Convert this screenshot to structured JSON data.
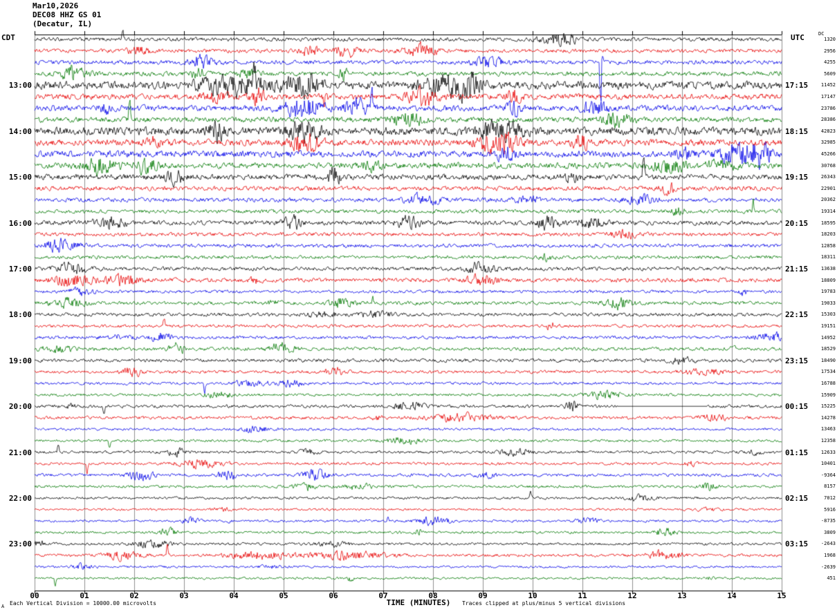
{
  "title": {
    "line1": "Mar10,2026",
    "line2": "DEC08 HHZ GS 01",
    "line3": "(Decatur, IL)"
  },
  "timezones": {
    "left": "CDT",
    "right": "UTC",
    "right_scale": "DC"
  },
  "footer": {
    "left": "Each Vertical Division = 10000.00 microvolts",
    "right": "Traces clipped at plus/minus 5 vertical divisions",
    "corner": "A"
  },
  "chart_data": {
    "type": "line",
    "subtype": "helicorder seismogram, 48 trace lines of 15 minutes each, colors cycling black/red/blue/green",
    "xlabel": "TIME (MINUTES)",
    "x_ticks": [
      "00",
      "01",
      "02",
      "03",
      "04",
      "05",
      "06",
      "07",
      "08",
      "09",
      "10",
      "11",
      "12",
      "13",
      "14",
      "15"
    ],
    "x_range_minutes": [
      0,
      15
    ],
    "minutes_per_line": 15,
    "grid": true,
    "grid_color": "#8f8f8f",
    "trace_colors": {
      "black": "#000000",
      "red": "#e80000",
      "blue": "#0000e8",
      "green": "#007700"
    },
    "left_time_labels": [
      {
        "row": 4,
        "text": "13:00"
      },
      {
        "row": 8,
        "text": "14:00"
      },
      {
        "row": 12,
        "text": "15:00"
      },
      {
        "row": 16,
        "text": "16:00"
      },
      {
        "row": 20,
        "text": "17:00"
      },
      {
        "row": 24,
        "text": "18:00"
      },
      {
        "row": 28,
        "text": "19:00"
      },
      {
        "row": 32,
        "text": "20:00"
      },
      {
        "row": 36,
        "text": "21:00"
      },
      {
        "row": 40,
        "text": "22:00"
      },
      {
        "row": 44,
        "text": "23:00"
      }
    ],
    "right_time_labels": [
      {
        "row": 4,
        "text": "17:15"
      },
      {
        "row": 8,
        "text": "18:15"
      },
      {
        "row": 12,
        "text": "19:15"
      },
      {
        "row": 16,
        "text": "20:15"
      },
      {
        "row": 20,
        "text": "21:15"
      },
      {
        "row": 24,
        "text": "22:15"
      },
      {
        "row": 28,
        "text": "23:15"
      },
      {
        "row": 32,
        "text": "00:15"
      },
      {
        "row": 36,
        "text": "01:15"
      },
      {
        "row": 40,
        "text": "02:15"
      },
      {
        "row": 44,
        "text": "03:15"
      }
    ],
    "rows": [
      {
        "value": "1320",
        "color": "black",
        "amp": 2.2
      },
      {
        "value": "2956",
        "color": "red",
        "amp": 2.2,
        "events": [
          {
            "p": 0.515,
            "w": 0.02,
            "m": 3.5
          }
        ]
      },
      {
        "value": "4255",
        "color": "blue",
        "amp": 2.4,
        "events": [
          {
            "p": 0.225,
            "w": 0.015,
            "m": 3
          },
          {
            "p": 0.758,
            "w": 0.0015,
            "m": 40
          }
        ]
      },
      {
        "value": "5609",
        "color": "green",
        "amp": 2.6,
        "events": [
          {
            "p": 0.05,
            "w": 0.02,
            "m": 2.5
          },
          {
            "p": 0.22,
            "w": 0.01,
            "m": 2
          }
        ]
      },
      {
        "value": "11452",
        "color": "black",
        "amp": 4.5,
        "events": [
          {
            "p": 0.27,
            "w": 0.05,
            "m": 2.5
          },
          {
            "p": 0.36,
            "w": 0.02,
            "m": 3
          },
          {
            "p": 0.55,
            "w": 0.03,
            "m": 2.5
          }
        ]
      },
      {
        "value": "17147",
        "color": "red",
        "amp": 3.2,
        "events": [
          {
            "p": 0.52,
            "w": 0.02,
            "m": 3
          },
          {
            "p": 0.64,
            "w": 0.01,
            "m": 2.5
          }
        ]
      },
      {
        "value": "23786",
        "color": "blue",
        "amp": 3.4,
        "events": [
          {
            "p": 0.36,
            "w": 0.025,
            "m": 3.5
          },
          {
            "p": 0.43,
            "w": 0.015,
            "m": 3
          },
          {
            "p": 0.64,
            "w": 0.01,
            "m": 2.5
          },
          {
            "p": 0.75,
            "w": 0.015,
            "m": 2.5
          }
        ]
      },
      {
        "value": "28386",
        "color": "green",
        "amp": 3.0,
        "events": [
          {
            "p": 0.5,
            "w": 0.02,
            "m": 2.5
          }
        ]
      },
      {
        "value": "42823",
        "color": "black",
        "amp": 4.8,
        "events": [
          {
            "p": 0.36,
            "w": 0.02,
            "m": 2.5
          },
          {
            "p": 0.62,
            "w": 0.03,
            "m": 2
          }
        ]
      },
      {
        "value": "32985",
        "color": "red",
        "amp": 3.6,
        "events": [
          {
            "p": 0.36,
            "w": 0.02,
            "m": 3
          },
          {
            "p": 0.62,
            "w": 0.025,
            "m": 3.5
          },
          {
            "p": 0.73,
            "w": 0.01,
            "m": 2.5
          }
        ]
      },
      {
        "value": "45266",
        "color": "blue",
        "amp": 3.8,
        "events": [
          {
            "p": 0.63,
            "w": 0.01,
            "m": 2.5
          },
          {
            "p": 0.95,
            "w": 0.03,
            "m": 3.5
          }
        ]
      },
      {
        "value": "30768",
        "color": "green",
        "amp": 3.4,
        "events": [
          {
            "p": 0.15,
            "w": 0.015,
            "m": 2.5
          },
          {
            "p": 0.85,
            "w": 0.02,
            "m": 2.5
          }
        ]
      },
      {
        "value": "26343",
        "color": "black",
        "amp": 3.2,
        "events": [
          {
            "p": 0.4,
            "w": 0.008,
            "m": 4
          }
        ]
      },
      {
        "value": "22901",
        "color": "red",
        "amp": 2.6
      },
      {
        "value": "20362",
        "color": "blue",
        "amp": 2.4,
        "events": [
          {
            "p": 0.52,
            "w": 0.02,
            "m": 2.5
          }
        ]
      },
      {
        "value": "19314",
        "color": "green",
        "amp": 2.2
      },
      {
        "value": "18595",
        "color": "black",
        "amp": 2.6,
        "events": [
          {
            "p": 0.1,
            "w": 0.02,
            "m": 2.5
          },
          {
            "p": 0.5,
            "w": 0.015,
            "m": 2.5
          },
          {
            "p": 0.75,
            "w": 0.015,
            "m": 2
          }
        ]
      },
      {
        "value": "18203",
        "color": "red",
        "amp": 2.2
      },
      {
        "value": "12858",
        "color": "blue",
        "amp": 2.2
      },
      {
        "value": "18311",
        "color": "green",
        "amp": 2.0
      },
      {
        "value": "13638",
        "color": "black",
        "amp": 2.2,
        "events": [
          {
            "p": 0.05,
            "w": 0.02,
            "m": 3
          }
        ]
      },
      {
        "value": "18809",
        "color": "red",
        "amp": 2.4,
        "events": [
          {
            "p": 0.05,
            "w": 0.025,
            "m": 3
          },
          {
            "p": 0.6,
            "w": 0.02,
            "m": 2.5
          }
        ]
      },
      {
        "value": "19783",
        "color": "blue",
        "amp": 1.8
      },
      {
        "value": "19033",
        "color": "green",
        "amp": 2.0,
        "events": [
          {
            "p": 0.41,
            "w": 0.015,
            "m": 3
          }
        ]
      },
      {
        "value": "15303",
        "color": "black",
        "amp": 2.0
      },
      {
        "value": "19151",
        "color": "red",
        "amp": 1.8
      },
      {
        "value": "14952",
        "color": "blue",
        "amp": 1.8,
        "events": [
          {
            "p": 0.17,
            "w": 0.012,
            "m": 4
          }
        ]
      },
      {
        "value": "18529",
        "color": "green",
        "amp": 2.0,
        "events": [
          {
            "p": 0.19,
            "w": 0.01,
            "m": 3
          },
          {
            "p": 0.33,
            "w": 0.015,
            "m": 3.5
          }
        ]
      },
      {
        "value": "18490",
        "color": "black",
        "amp": 2.0
      },
      {
        "value": "17534",
        "color": "red",
        "amp": 1.8,
        "events": [
          {
            "p": 0.13,
            "w": 0.012,
            "m": 3
          }
        ]
      },
      {
        "value": "16788",
        "color": "blue",
        "amp": 1.6
      },
      {
        "value": "15909",
        "color": "green",
        "amp": 1.6
      },
      {
        "value": "15225",
        "color": "black",
        "amp": 1.8,
        "flat": [
          [
            0.78,
            0.9
          ]
        ],
        "events": [
          {
            "p": 0.5,
            "w": 0.02,
            "m": 2.5
          },
          {
            "p": 0.72,
            "w": 0.01,
            "m": 3
          }
        ]
      },
      {
        "value": "14278",
        "color": "red",
        "amp": 1.8,
        "events": [
          {
            "p": 0.57,
            "w": 0.04,
            "m": 2.5
          }
        ]
      },
      {
        "value": "13463",
        "color": "blue",
        "amp": 1.5
      },
      {
        "value": "12358",
        "color": "green",
        "amp": 1.5
      },
      {
        "value": "12633",
        "color": "black",
        "amp": 1.6,
        "events": [
          {
            "p": 0.19,
            "w": 0.012,
            "m": 3
          }
        ]
      },
      {
        "value": "10401",
        "color": "red",
        "amp": 1.6,
        "events": [
          {
            "p": 0.22,
            "w": 0.03,
            "m": 2.5
          }
        ]
      },
      {
        "value": "-9364",
        "color": "blue",
        "amp": 1.8,
        "events": [
          {
            "p": 0.375,
            "w": 0.015,
            "m": 4
          }
        ]
      },
      {
        "value": "8157",
        "color": "green",
        "amp": 1.6,
        "events": [
          {
            "p": 0.36,
            "w": 0.012,
            "m": 3
          }
        ]
      },
      {
        "value": "7012",
        "color": "black",
        "amp": 1.5
      },
      {
        "value": "5916",
        "color": "red",
        "amp": 1.4
      },
      {
        "value": "-8735",
        "color": "blue",
        "amp": 1.4,
        "events": [
          {
            "p": 0.74,
            "w": 0.015,
            "m": 2.5
          }
        ]
      },
      {
        "value": "3809",
        "color": "green",
        "amp": 1.5,
        "events": [
          {
            "p": 0.845,
            "w": 0.015,
            "m": 3
          }
        ]
      },
      {
        "value": "-2643",
        "color": "black",
        "amp": 1.5
      },
      {
        "value": "1968",
        "color": "red",
        "amp": 1.7,
        "events": [
          {
            "p": 0.3,
            "w": 0.04,
            "m": 2.5
          },
          {
            "p": 0.42,
            "w": 0.05,
            "m": 2.5
          }
        ]
      },
      {
        "value": "-2639",
        "color": "blue",
        "amp": 1.3
      },
      {
        "value": "451",
        "color": "green",
        "amp": 1.3
      }
    ]
  }
}
